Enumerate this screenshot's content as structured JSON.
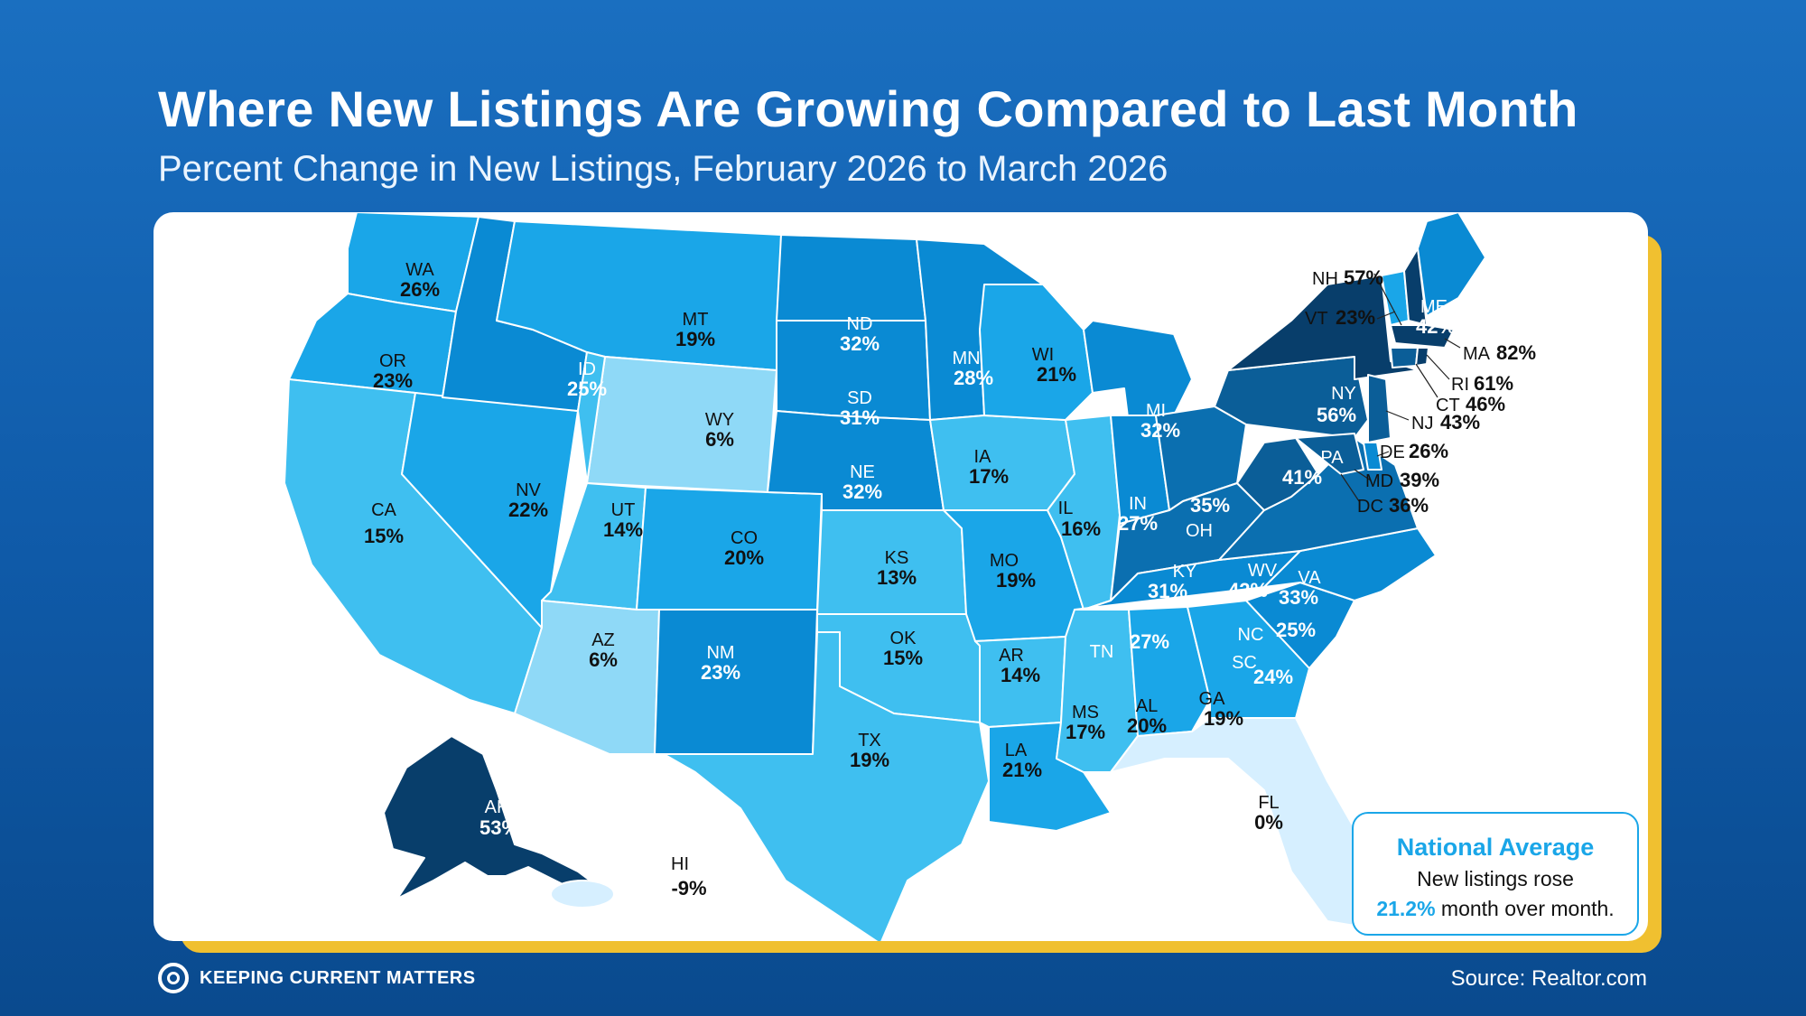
{
  "header": {
    "title": "Where New Listings Are Growing Compared to Last Month",
    "subtitle": "Percent Change in New Listings, February 2026 to March 2026"
  },
  "colors": {
    "lightest": "#d6efff",
    "light": "#8fd9f7",
    "mid_light": "#3fbff0",
    "mid": "#1aa6e8",
    "mid_dark": "#0a8ad3",
    "dark": "#0b6fb0",
    "darker": "#0b5e98",
    "darkest": "#083e6b",
    "accent": "#1aa6e8",
    "frame": "#f0c030"
  },
  "states": [
    {
      "code": "WA",
      "value": "26%"
    },
    {
      "code": "OR",
      "value": "23%"
    },
    {
      "code": "CA",
      "value": "15%"
    },
    {
      "code": "NV",
      "value": "22%"
    },
    {
      "code": "ID",
      "value": "25%"
    },
    {
      "code": "MT",
      "value": "19%"
    },
    {
      "code": "WY",
      "value": "6%"
    },
    {
      "code": "UT",
      "value": "14%"
    },
    {
      "code": "AZ",
      "value": "6%"
    },
    {
      "code": "CO",
      "value": "20%"
    },
    {
      "code": "NM",
      "value": "23%"
    },
    {
      "code": "ND",
      "value": "32%"
    },
    {
      "code": "SD",
      "value": "31%"
    },
    {
      "code": "NE",
      "value": "32%"
    },
    {
      "code": "KS",
      "value": "13%"
    },
    {
      "code": "OK",
      "value": "15%"
    },
    {
      "code": "TX",
      "value": "19%"
    },
    {
      "code": "MN",
      "value": "28%"
    },
    {
      "code": "IA",
      "value": "17%"
    },
    {
      "code": "MO",
      "value": "19%"
    },
    {
      "code": "AR",
      "value": "14%"
    },
    {
      "code": "LA",
      "value": "21%"
    },
    {
      "code": "WI",
      "value": "21%"
    },
    {
      "code": "IL",
      "value": "16%"
    },
    {
      "code": "MI",
      "value": "32%"
    },
    {
      "code": "IN",
      "value": "27%"
    },
    {
      "code": "OH",
      "value": "35%"
    },
    {
      "code": "KY",
      "value": "31%"
    },
    {
      "code": "TN",
      "value": "27%"
    },
    {
      "code": "MS",
      "value": "17%"
    },
    {
      "code": "AL",
      "value": "20%"
    },
    {
      "code": "GA",
      "value": "19%"
    },
    {
      "code": "FL",
      "value": "0%"
    },
    {
      "code": "SC",
      "value": "24%"
    },
    {
      "code": "NC",
      "value": "25%"
    },
    {
      "code": "VA",
      "value": "33%"
    },
    {
      "code": "WV",
      "value": "42%"
    },
    {
      "code": "PA",
      "value": "41%"
    },
    {
      "code": "NY",
      "value": "56%"
    },
    {
      "code": "ME",
      "value": "42%"
    },
    {
      "code": "AK",
      "value": "53%"
    },
    {
      "code": "HI",
      "value": "-9%"
    }
  ],
  "external_labels": [
    {
      "code": "NH",
      "value": "57%"
    },
    {
      "code": "VT",
      "value": "23%"
    },
    {
      "code": "MA",
      "value": "82%"
    },
    {
      "code": "RI",
      "value": "61%"
    },
    {
      "code": "CT",
      "value": "46%"
    },
    {
      "code": "NJ",
      "value": "43%"
    },
    {
      "code": "DE",
      "value": "26%"
    },
    {
      "code": "MD",
      "value": "39%"
    },
    {
      "code": "DC",
      "value": "36%"
    }
  ],
  "national_average": {
    "title": "National Average",
    "line1": "New listings rose",
    "highlight": "21.2%",
    "line2_rest": " month over month."
  },
  "footer": {
    "brand": "KEEPING CURRENT MATTERS",
    "source": "Source: Realtor.com"
  }
}
